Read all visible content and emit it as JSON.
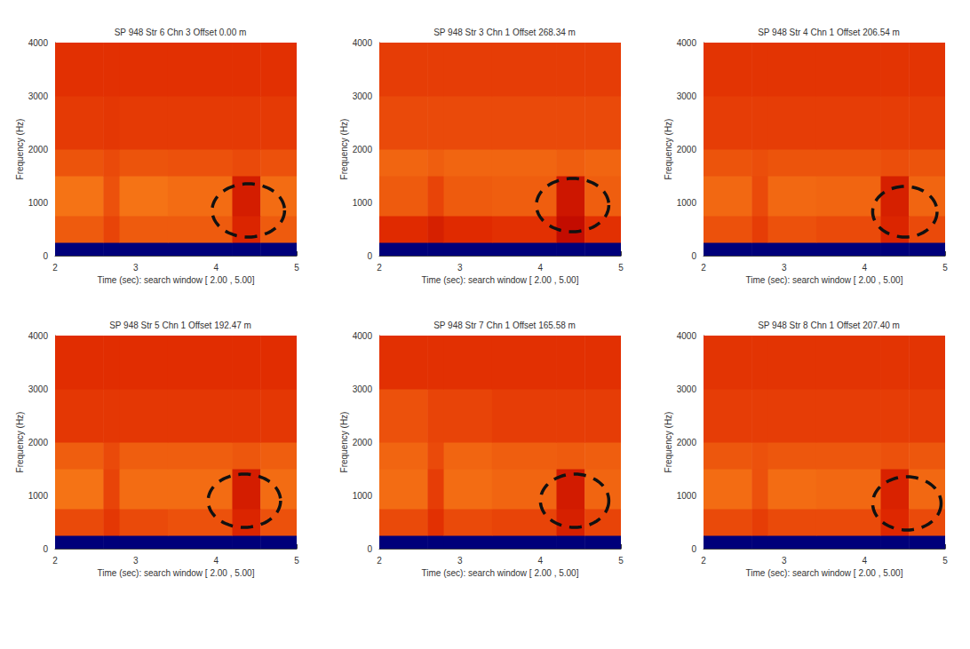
{
  "chart_data": [
    {
      "type": "heatmap",
      "title": "SP 948 Str 6 Chn 3 Offset 0.00 m",
      "x_label": "Time (sec): search window [ 2.00 , 5.00]",
      "y_label": "Frequency (Hz)",
      "xlim": [
        2,
        5
      ],
      "xticks": [
        2,
        3,
        4,
        5
      ],
      "ylim": [
        0,
        4000
      ],
      "yticks": [
        0,
        1000,
        2000,
        3000,
        4000
      ],
      "time_edges": [
        2,
        2.6,
        2.8,
        3.4,
        4.2,
        4.55,
        5
      ],
      "frequency_edges": [
        0,
        250,
        750,
        1500,
        2000,
        3000,
        4000
      ],
      "intensity": [
        [
          0,
          0,
          0,
          0,
          0,
          0
        ],
        [
          6.5,
          5.8,
          6.5,
          6.5,
          4.8,
          6.5
        ],
        [
          7.2,
          6.2,
          7.2,
          7.0,
          4.5,
          7.0
        ],
        [
          6.3,
          6.0,
          6.3,
          6.2,
          6.0,
          6.2
        ],
        [
          5.5,
          5.4,
          5.5,
          5.5,
          5.5,
          5.5
        ],
        [
          5.2,
          5.2,
          5.2,
          5.2,
          5.2,
          5.2
        ]
      ],
      "intensity_range": [
        0,
        10
      ],
      "colormap": [
        "#00007a",
        "#600000",
        "#b80000",
        "#e02a00",
        "#f06010",
        "#ff9a20",
        "#ffd050"
      ],
      "annotation_ellipse": {
        "time": [
          3.95,
          4.85
        ],
        "frequency": [
          350,
          1350
        ]
      }
    },
    {
      "type": "heatmap",
      "title": "SP 948 Str 3 Chn 1 Offset 268.34 m",
      "x_label": "Time (sec): search window [ 2.00 , 5.00]",
      "y_label": "Frequency (Hz)",
      "xlim": [
        2,
        5
      ],
      "xticks": [
        2,
        3,
        4,
        5
      ],
      "ylim": [
        0,
        4000
      ],
      "yticks": [
        0,
        1000,
        2000,
        3000,
        4000
      ],
      "time_edges": [
        2,
        2.6,
        2.8,
        3.4,
        4.2,
        4.55,
        5
      ],
      "frequency_edges": [
        0,
        250,
        750,
        1500,
        2000,
        3000,
        4000
      ],
      "intensity": [
        [
          0,
          0,
          0,
          0,
          0,
          0
        ],
        [
          5.0,
          4.6,
          5.0,
          5.2,
          3.8,
          5.2
        ],
        [
          6.5,
          5.8,
          6.5,
          6.6,
          4.2,
          6.6
        ],
        [
          6.8,
          6.6,
          6.8,
          6.8,
          6.6,
          6.8
        ],
        [
          6.0,
          6.0,
          6.0,
          6.0,
          6.0,
          6.0
        ],
        [
          5.6,
          5.6,
          5.6,
          5.6,
          5.6,
          5.6
        ]
      ],
      "intensity_range": [
        0,
        10
      ],
      "colormap": [
        "#00007a",
        "#600000",
        "#b80000",
        "#e02a00",
        "#f06010",
        "#ff9a20",
        "#ffd050"
      ],
      "annotation_ellipse": {
        "time": [
          3.95,
          4.85
        ],
        "frequency": [
          450,
          1450
        ]
      }
    },
    {
      "type": "heatmap",
      "title": "SP 948 Str 4 Chn 1 Offset 206.54 m",
      "x_label": "Time (sec): search window [ 2.00 , 5.00]",
      "y_label": "Frequency (Hz)",
      "xlim": [
        2,
        5
      ],
      "xticks": [
        2,
        3,
        4,
        5
      ],
      "ylim": [
        0,
        4000
      ],
      "yticks": [
        0,
        1000,
        2000,
        3000,
        4000
      ],
      "time_edges": [
        2,
        2.6,
        2.8,
        3.4,
        4.2,
        4.55,
        5
      ],
      "frequency_edges": [
        0,
        250,
        750,
        1500,
        2000,
        3000,
        4000
      ],
      "intensity": [
        [
          0,
          0,
          0,
          0,
          0,
          0
        ],
        [
          6.2,
          5.6,
          6.2,
          6.0,
          4.8,
          6.0
        ],
        [
          6.9,
          6.0,
          6.9,
          6.8,
          4.6,
          6.8
        ],
        [
          6.3,
          6.1,
          6.3,
          6.3,
          6.1,
          6.3
        ],
        [
          5.6,
          5.6,
          5.6,
          5.6,
          5.6,
          5.6
        ],
        [
          5.3,
          5.3,
          5.3,
          5.3,
          5.3,
          5.3
        ]
      ],
      "intensity_range": [
        0,
        10
      ],
      "colormap": [
        "#00007a",
        "#600000",
        "#b80000",
        "#e02a00",
        "#f06010",
        "#ff9a20",
        "#ffd050"
      ],
      "annotation_ellipse": {
        "time": [
          4.1,
          4.9
        ],
        "frequency": [
          350,
          1300
        ]
      }
    },
    {
      "type": "heatmap",
      "title": "SP 948 Str 5 Chn 1 Offset 192.47 m",
      "x_label": "Time (sec): search window [ 2.00 , 5.00]",
      "y_label": "Frequency (Hz)",
      "xlim": [
        2,
        5
      ],
      "xticks": [
        2,
        3,
        4,
        5
      ],
      "ylim": [
        0,
        4000
      ],
      "yticks": [
        0,
        1000,
        2000,
        3000,
        4000
      ],
      "time_edges": [
        2,
        2.6,
        2.8,
        3.4,
        4.2,
        4.55,
        5
      ],
      "frequency_edges": [
        0,
        250,
        750,
        1500,
        2000,
        3000,
        4000
      ],
      "intensity": [
        [
          0,
          0,
          0,
          0,
          0,
          0
        ],
        [
          6.0,
          5.4,
          6.0,
          6.2,
          4.8,
          6.2
        ],
        [
          7.2,
          5.8,
          7.0,
          7.0,
          4.5,
          7.0
        ],
        [
          6.6,
          6.0,
          6.6,
          6.6,
          6.4,
          6.6
        ],
        [
          5.4,
          5.4,
          5.4,
          5.4,
          5.4,
          5.4
        ],
        [
          5.1,
          5.1,
          5.1,
          5.1,
          5.1,
          5.1
        ]
      ],
      "intensity_range": [
        0,
        10
      ],
      "colormap": [
        "#00007a",
        "#600000",
        "#b80000",
        "#e02a00",
        "#f06010",
        "#ff9a20",
        "#ffd050"
      ],
      "annotation_ellipse": {
        "time": [
          3.9,
          4.8
        ],
        "frequency": [
          400,
          1400
        ]
      }
    },
    {
      "type": "heatmap",
      "title": "SP 948 Str 7 Chn 1 Offset 165.58 m",
      "x_label": "Time (sec): search window [ 2.00 , 5.00]",
      "y_label": "Frequency (Hz)",
      "xlim": [
        2,
        5
      ],
      "xticks": [
        2,
        3,
        4,
        5
      ],
      "ylim": [
        0,
        4000
      ],
      "yticks": [
        0,
        1000,
        2000,
        3000,
        4000
      ],
      "time_edges": [
        2,
        2.6,
        2.8,
        3.4,
        4.2,
        4.55,
        5
      ],
      "frequency_edges": [
        0,
        250,
        750,
        1500,
        2000,
        3000,
        4000
      ],
      "intensity": [
        [
          0,
          0,
          0,
          0,
          0,
          0
        ],
        [
          6.0,
          5.2,
          6.0,
          5.8,
          4.6,
          5.8
        ],
        [
          7.0,
          5.6,
          7.0,
          6.8,
          4.4,
          6.8
        ],
        [
          6.8,
          6.0,
          6.8,
          6.6,
          6.5,
          6.6
        ],
        [
          6.2,
          5.8,
          5.8,
          5.6,
          5.6,
          5.6
        ],
        [
          5.2,
          5.2,
          5.2,
          5.2,
          5.2,
          5.2
        ]
      ],
      "intensity_range": [
        0,
        10
      ],
      "colormap": [
        "#00007a",
        "#600000",
        "#b80000",
        "#e02a00",
        "#f06010",
        "#ff9a20",
        "#ffd050"
      ],
      "annotation_ellipse": {
        "time": [
          4.0,
          4.85
        ],
        "frequency": [
          400,
          1400
        ]
      }
    },
    {
      "type": "heatmap",
      "title": "SP 948 Str 8 Chn 1 Offset 207.40 m",
      "x_label": "Time (sec): search window [ 2.00 , 5.00]",
      "y_label": "Frequency (Hz)",
      "xlim": [
        2,
        5
      ],
      "xticks": [
        2,
        3,
        4,
        5
      ],
      "ylim": [
        0,
        4000
      ],
      "yticks": [
        0,
        1000,
        2000,
        3000,
        4000
      ],
      "time_edges": [
        2,
        2.6,
        2.8,
        3.4,
        4.2,
        4.55,
        5
      ],
      "frequency_edges": [
        0,
        250,
        750,
        1500,
        2000,
        3000,
        4000
      ],
      "intensity": [
        [
          0,
          0,
          0,
          0,
          0,
          0
        ],
        [
          6.0,
          5.6,
          6.0,
          6.0,
          4.9,
          6.0
        ],
        [
          7.0,
          6.2,
          7.0,
          6.9,
          4.7,
          6.9
        ],
        [
          6.4,
          6.2,
          6.4,
          6.4,
          6.2,
          6.4
        ],
        [
          5.6,
          5.6,
          5.6,
          5.6,
          5.6,
          5.6
        ],
        [
          5.3,
          5.3,
          5.3,
          5.3,
          5.3,
          5.3
        ]
      ],
      "intensity_range": [
        0,
        10
      ],
      "colormap": [
        "#00007a",
        "#600000",
        "#b80000",
        "#e02a00",
        "#f06010",
        "#ff9a20",
        "#ffd050"
      ],
      "annotation_ellipse": {
        "time": [
          4.1,
          4.95
        ],
        "frequency": [
          350,
          1350
        ]
      }
    }
  ]
}
